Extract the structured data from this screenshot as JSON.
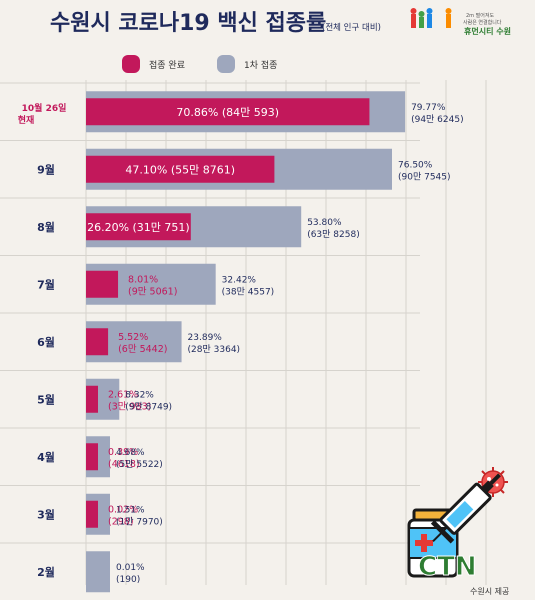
{
  "header": {
    "title": "수원시 코로나19 백신 접종률",
    "subtitle": "(전체 인구 대비)",
    "logo_lines": [
      "2m 떨어져도",
      "사람은 연결합니다"
    ],
    "logo_brand": "휴먼시티 수원"
  },
  "legend": {
    "complete_label": "접종 완료",
    "first_label": "1차 접종",
    "complete_color": "#c2185b",
    "first_color": "#9ea7bd"
  },
  "chart_data": {
    "type": "bar",
    "orientation": "horizontal",
    "categories": [
      "10월 26일 현재",
      "9월",
      "8월",
      "7월",
      "6월",
      "5월",
      "4월",
      "3월",
      "2월"
    ],
    "xlim": [
      0,
      100
    ],
    "grid": true,
    "series": [
      {
        "name": "접종 완료",
        "values": [
          70.86,
          47.1,
          26.2,
          8.01,
          5.52,
          2.61,
          0.39,
          0.02,
          0
        ],
        "labels": [
          [
            "70.86% (84만 593)"
          ],
          [
            "47.10% (55만 8761)"
          ],
          [
            "26.20% (31만 751)"
          ],
          [
            "8.01%",
            "(9만 5061)"
          ],
          [
            "5.52%",
            "(6만 5442)"
          ],
          [
            "2.61%",
            "(3만 983)"
          ],
          [
            "0.39%",
            "(4618)"
          ],
          [
            "0.02%",
            "(298)"
          ],
          []
        ]
      },
      {
        "name": "1차 접종",
        "values": [
          79.77,
          76.5,
          53.8,
          32.42,
          23.89,
          8.32,
          4.68,
          1.51,
          0.01
        ],
        "labels": [
          [
            "79.77%",
            "(94만 6245)"
          ],
          [
            "76.50%",
            "(90만 7545)"
          ],
          [
            "53.80%",
            "(63만 8258)"
          ],
          [
            "32.42%",
            "(38만 4557)"
          ],
          [
            "23.89%",
            "(28만 3364)"
          ],
          [
            "8.32%",
            "(9만 8749)"
          ],
          [
            "4.68%",
            "(5만 5522)"
          ],
          [
            "1.51%",
            "(1만 7970)"
          ],
          [
            "0.01%",
            "(190)"
          ]
        ]
      }
    ]
  },
  "icon": {
    "name": "vaccine-syringe-icon",
    "text": "CTN"
  },
  "credit": "수원시 제공"
}
